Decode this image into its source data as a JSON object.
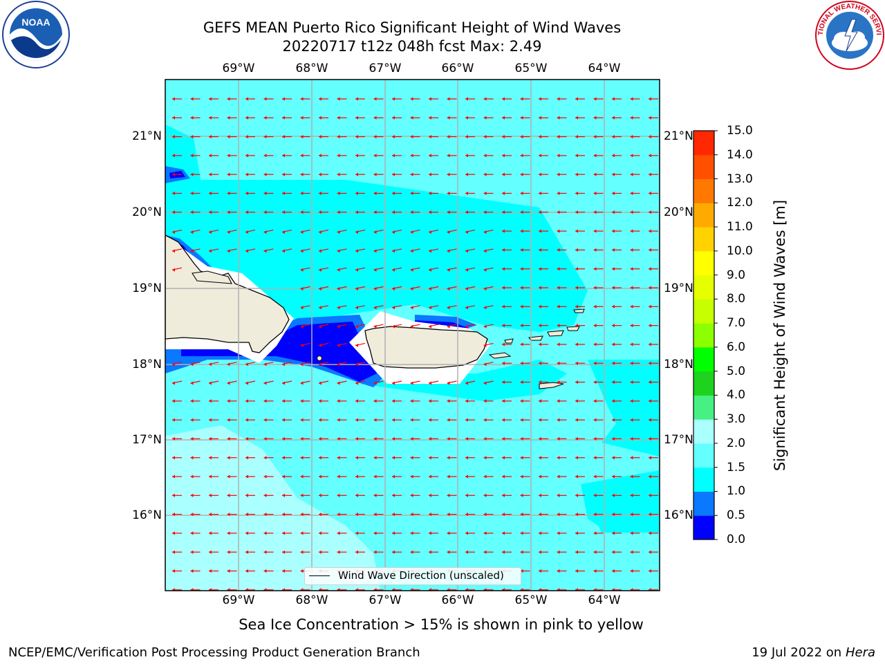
{
  "title": {
    "line1": "GEFS MEAN Puerto Rico Significant Height of Wind Waves",
    "line2": "20220717 t12z 048h fcst   Max: 2.49"
  },
  "map": {
    "lon_labels": [
      "69°W",
      "68°W",
      "67°W",
      "66°W",
      "65°W",
      "64°W"
    ],
    "lat_labels": [
      "21°N",
      "20°N",
      "19°N",
      "18°N",
      "17°N",
      "16°N"
    ],
    "arrow_color": "#ff0000",
    "land_color": "#efecdc",
    "legend_label": "Wind Wave Direction (unscaled)"
  },
  "colorbar": {
    "label": "Significant Height of Wind Waves [m]",
    "ticks": [
      "15.0",
      "14.0",
      "13.0",
      "12.0",
      "11.0",
      "10.0",
      "9.0",
      "8.0",
      "7.0",
      "6.0",
      "5.0",
      "4.0",
      "3.0",
      "2.0",
      "1.5",
      "1.0",
      "0.5",
      "0.0"
    ],
    "colors": [
      "#0000ff",
      "#0a78ff",
      "#00ffff",
      "#64ffff",
      "#aaffff",
      "#46f082",
      "#1ed21e",
      "#00ff00",
      "#8cff00",
      "#c8ff00",
      "#e6ff00",
      "#ffff00",
      "#ffd200",
      "#ffaa00",
      "#ff7800",
      "#ff5000",
      "#ff2800"
    ]
  },
  "note": "Sea Ice Concentration > 15% is shown in pink to yellow",
  "footer": {
    "left": "NCEP/EMC/Verification Post Processing Product Generation Branch",
    "right_prefix": "19 Jul 2022 on",
    "right_machine": "Hera"
  },
  "logos": {
    "left_text": "NOAA",
    "right_text": "NATIONAL WEATHER SERVICE"
  }
}
